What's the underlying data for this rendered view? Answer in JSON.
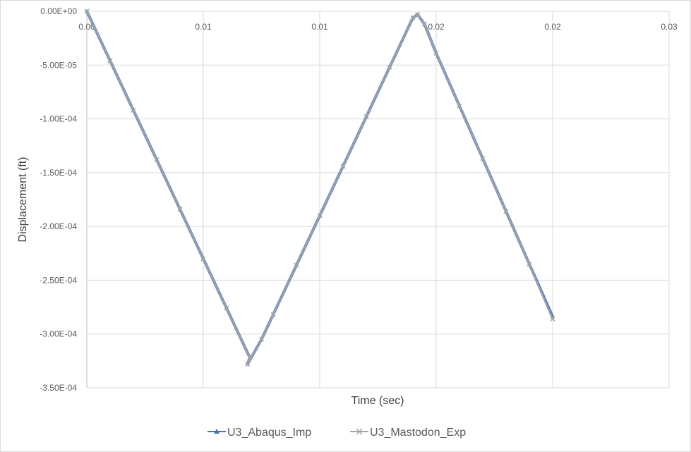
{
  "chart_data": {
    "type": "line",
    "title": "",
    "xlabel": "Time (sec)",
    "ylabel": "Displacement (ft)",
    "xlim": [
      0,
      0.025
    ],
    "ylim": [
      -0.00035,
      0
    ],
    "grid": true,
    "legend_position": "bottom",
    "x_tick_labels": [
      "0.00",
      "0.01",
      "0.01",
      "0.02",
      "0.02",
      "0.03"
    ],
    "y_tick_labels": [
      "0.00E+00",
      "-5.00E-05",
      "-1.00E-04",
      "-1.50E-04",
      "-2.00E-04",
      "-2.50E-04",
      "-3.00E-04",
      "-3.50E-04"
    ],
    "series": [
      {
        "name": "U3_Abaqus_Imp",
        "color": "#4472c4",
        "marker": "triangle",
        "x": [
          0,
          0.001,
          0.002,
          0.003,
          0.004,
          0.005,
          0.006,
          0.007,
          0.0069,
          0.0075,
          0.008,
          0.009,
          0.01,
          0.011,
          0.012,
          0.013,
          0.014,
          0.0142,
          0.0145,
          0.015,
          0.016,
          0.017,
          0.018,
          0.019,
          0.02
        ],
        "y": [
          0,
          -4.6e-05,
          -9.2e-05,
          -0.000138,
          -0.000184,
          -0.00023,
          -0.000276,
          -0.000322,
          -0.000328,
          -0.000305,
          -0.000282,
          -0.000236,
          -0.00019,
          -0.000144,
          -9.8e-05,
          -5.2e-05,
          -6e-06,
          -3e-06,
          -1.2e-05,
          -3.9e-05,
          -8.8e-05,
          -0.000137,
          -0.000186,
          -0.000235,
          -0.000284
        ]
      },
      {
        "name": "U3_Mastodon_Exp",
        "color": "#a5a5a5",
        "marker": "x",
        "x": [
          0,
          0.001,
          0.002,
          0.003,
          0.004,
          0.005,
          0.006,
          0.007,
          0.0069,
          0.0075,
          0.008,
          0.009,
          0.01,
          0.011,
          0.012,
          0.013,
          0.014,
          0.0142,
          0.0145,
          0.015,
          0.016,
          0.017,
          0.018,
          0.019,
          0.02
        ],
        "y": [
          0,
          -4.6e-05,
          -9.2e-05,
          -0.000138,
          -0.000184,
          -0.00023,
          -0.000276,
          -0.000322,
          -0.000328,
          -0.000305,
          -0.000282,
          -0.000236,
          -0.00019,
          -0.000144,
          -9.8e-05,
          -5.2e-05,
          -6e-06,
          -3e-06,
          -1.2e-05,
          -3.9e-05,
          -8.8e-05,
          -0.000137,
          -0.000186,
          -0.000235,
          -0.000286
        ]
      }
    ]
  }
}
